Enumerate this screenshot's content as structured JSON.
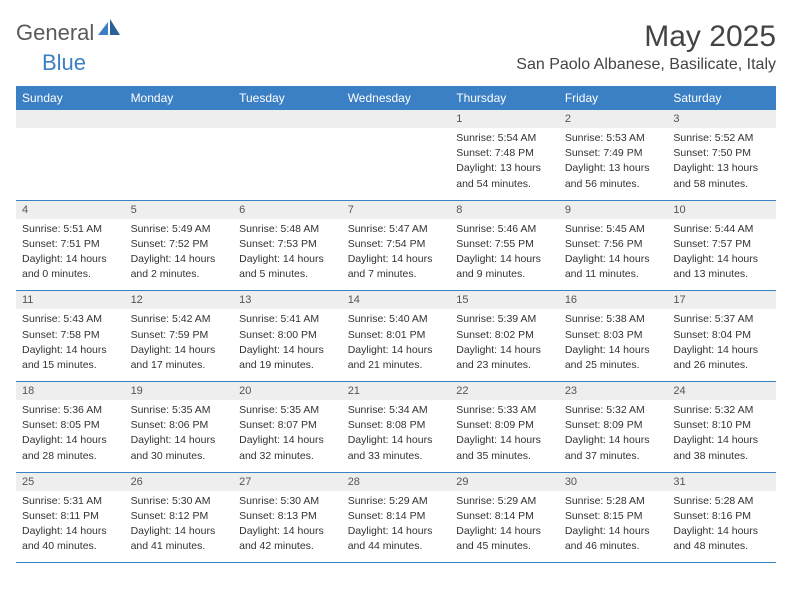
{
  "brand": {
    "part1": "General",
    "part2": "Blue"
  },
  "title": "May 2025",
  "location": "San Paolo Albanese, Basilicate, Italy",
  "colors": {
    "header_bg": "#3b7fc4",
    "header_text": "#ffffff",
    "daynum_bg": "#eeeeee",
    "daynum_text": "#555555",
    "body_text": "#333333",
    "title_text": "#444444",
    "logo_gray": "#5a5a5a",
    "logo_blue": "#3b7fc4",
    "row_border": "#3b7fc4"
  },
  "day_headers": [
    "Sunday",
    "Monday",
    "Tuesday",
    "Wednesday",
    "Thursday",
    "Friday",
    "Saturday"
  ],
  "weeks": [
    {
      "nums": [
        "",
        "",
        "",
        "",
        "1",
        "2",
        "3"
      ],
      "cells": [
        null,
        null,
        null,
        null,
        {
          "sunrise": "Sunrise: 5:54 AM",
          "sunset": "Sunset: 7:48 PM",
          "day1": "Daylight: 13 hours",
          "day2": "and 54 minutes."
        },
        {
          "sunrise": "Sunrise: 5:53 AM",
          "sunset": "Sunset: 7:49 PM",
          "day1": "Daylight: 13 hours",
          "day2": "and 56 minutes."
        },
        {
          "sunrise": "Sunrise: 5:52 AM",
          "sunset": "Sunset: 7:50 PM",
          "day1": "Daylight: 13 hours",
          "day2": "and 58 minutes."
        }
      ]
    },
    {
      "nums": [
        "4",
        "5",
        "6",
        "7",
        "8",
        "9",
        "10"
      ],
      "cells": [
        {
          "sunrise": "Sunrise: 5:51 AM",
          "sunset": "Sunset: 7:51 PM",
          "day1": "Daylight: 14 hours",
          "day2": "and 0 minutes."
        },
        {
          "sunrise": "Sunrise: 5:49 AM",
          "sunset": "Sunset: 7:52 PM",
          "day1": "Daylight: 14 hours",
          "day2": "and 2 minutes."
        },
        {
          "sunrise": "Sunrise: 5:48 AM",
          "sunset": "Sunset: 7:53 PM",
          "day1": "Daylight: 14 hours",
          "day2": "and 5 minutes."
        },
        {
          "sunrise": "Sunrise: 5:47 AM",
          "sunset": "Sunset: 7:54 PM",
          "day1": "Daylight: 14 hours",
          "day2": "and 7 minutes."
        },
        {
          "sunrise": "Sunrise: 5:46 AM",
          "sunset": "Sunset: 7:55 PM",
          "day1": "Daylight: 14 hours",
          "day2": "and 9 minutes."
        },
        {
          "sunrise": "Sunrise: 5:45 AM",
          "sunset": "Sunset: 7:56 PM",
          "day1": "Daylight: 14 hours",
          "day2": "and 11 minutes."
        },
        {
          "sunrise": "Sunrise: 5:44 AM",
          "sunset": "Sunset: 7:57 PM",
          "day1": "Daylight: 14 hours",
          "day2": "and 13 minutes."
        }
      ]
    },
    {
      "nums": [
        "11",
        "12",
        "13",
        "14",
        "15",
        "16",
        "17"
      ],
      "cells": [
        {
          "sunrise": "Sunrise: 5:43 AM",
          "sunset": "Sunset: 7:58 PM",
          "day1": "Daylight: 14 hours",
          "day2": "and 15 minutes."
        },
        {
          "sunrise": "Sunrise: 5:42 AM",
          "sunset": "Sunset: 7:59 PM",
          "day1": "Daylight: 14 hours",
          "day2": "and 17 minutes."
        },
        {
          "sunrise": "Sunrise: 5:41 AM",
          "sunset": "Sunset: 8:00 PM",
          "day1": "Daylight: 14 hours",
          "day2": "and 19 minutes."
        },
        {
          "sunrise": "Sunrise: 5:40 AM",
          "sunset": "Sunset: 8:01 PM",
          "day1": "Daylight: 14 hours",
          "day2": "and 21 minutes."
        },
        {
          "sunrise": "Sunrise: 5:39 AM",
          "sunset": "Sunset: 8:02 PM",
          "day1": "Daylight: 14 hours",
          "day2": "and 23 minutes."
        },
        {
          "sunrise": "Sunrise: 5:38 AM",
          "sunset": "Sunset: 8:03 PM",
          "day1": "Daylight: 14 hours",
          "day2": "and 25 minutes."
        },
        {
          "sunrise": "Sunrise: 5:37 AM",
          "sunset": "Sunset: 8:04 PM",
          "day1": "Daylight: 14 hours",
          "day2": "and 26 minutes."
        }
      ]
    },
    {
      "nums": [
        "18",
        "19",
        "20",
        "21",
        "22",
        "23",
        "24"
      ],
      "cells": [
        {
          "sunrise": "Sunrise: 5:36 AM",
          "sunset": "Sunset: 8:05 PM",
          "day1": "Daylight: 14 hours",
          "day2": "and 28 minutes."
        },
        {
          "sunrise": "Sunrise: 5:35 AM",
          "sunset": "Sunset: 8:06 PM",
          "day1": "Daylight: 14 hours",
          "day2": "and 30 minutes."
        },
        {
          "sunrise": "Sunrise: 5:35 AM",
          "sunset": "Sunset: 8:07 PM",
          "day1": "Daylight: 14 hours",
          "day2": "and 32 minutes."
        },
        {
          "sunrise": "Sunrise: 5:34 AM",
          "sunset": "Sunset: 8:08 PM",
          "day1": "Daylight: 14 hours",
          "day2": "and 33 minutes."
        },
        {
          "sunrise": "Sunrise: 5:33 AM",
          "sunset": "Sunset: 8:09 PM",
          "day1": "Daylight: 14 hours",
          "day2": "and 35 minutes."
        },
        {
          "sunrise": "Sunrise: 5:32 AM",
          "sunset": "Sunset: 8:09 PM",
          "day1": "Daylight: 14 hours",
          "day2": "and 37 minutes."
        },
        {
          "sunrise": "Sunrise: 5:32 AM",
          "sunset": "Sunset: 8:10 PM",
          "day1": "Daylight: 14 hours",
          "day2": "and 38 minutes."
        }
      ]
    },
    {
      "nums": [
        "25",
        "26",
        "27",
        "28",
        "29",
        "30",
        "31"
      ],
      "cells": [
        {
          "sunrise": "Sunrise: 5:31 AM",
          "sunset": "Sunset: 8:11 PM",
          "day1": "Daylight: 14 hours",
          "day2": "and 40 minutes."
        },
        {
          "sunrise": "Sunrise: 5:30 AM",
          "sunset": "Sunset: 8:12 PM",
          "day1": "Daylight: 14 hours",
          "day2": "and 41 minutes."
        },
        {
          "sunrise": "Sunrise: 5:30 AM",
          "sunset": "Sunset: 8:13 PM",
          "day1": "Daylight: 14 hours",
          "day2": "and 42 minutes."
        },
        {
          "sunrise": "Sunrise: 5:29 AM",
          "sunset": "Sunset: 8:14 PM",
          "day1": "Daylight: 14 hours",
          "day2": "and 44 minutes."
        },
        {
          "sunrise": "Sunrise: 5:29 AM",
          "sunset": "Sunset: 8:14 PM",
          "day1": "Daylight: 14 hours",
          "day2": "and 45 minutes."
        },
        {
          "sunrise": "Sunrise: 5:28 AM",
          "sunset": "Sunset: 8:15 PM",
          "day1": "Daylight: 14 hours",
          "day2": "and 46 minutes."
        },
        {
          "sunrise": "Sunrise: 5:28 AM",
          "sunset": "Sunset: 8:16 PM",
          "day1": "Daylight: 14 hours",
          "day2": "and 48 minutes."
        }
      ]
    }
  ]
}
